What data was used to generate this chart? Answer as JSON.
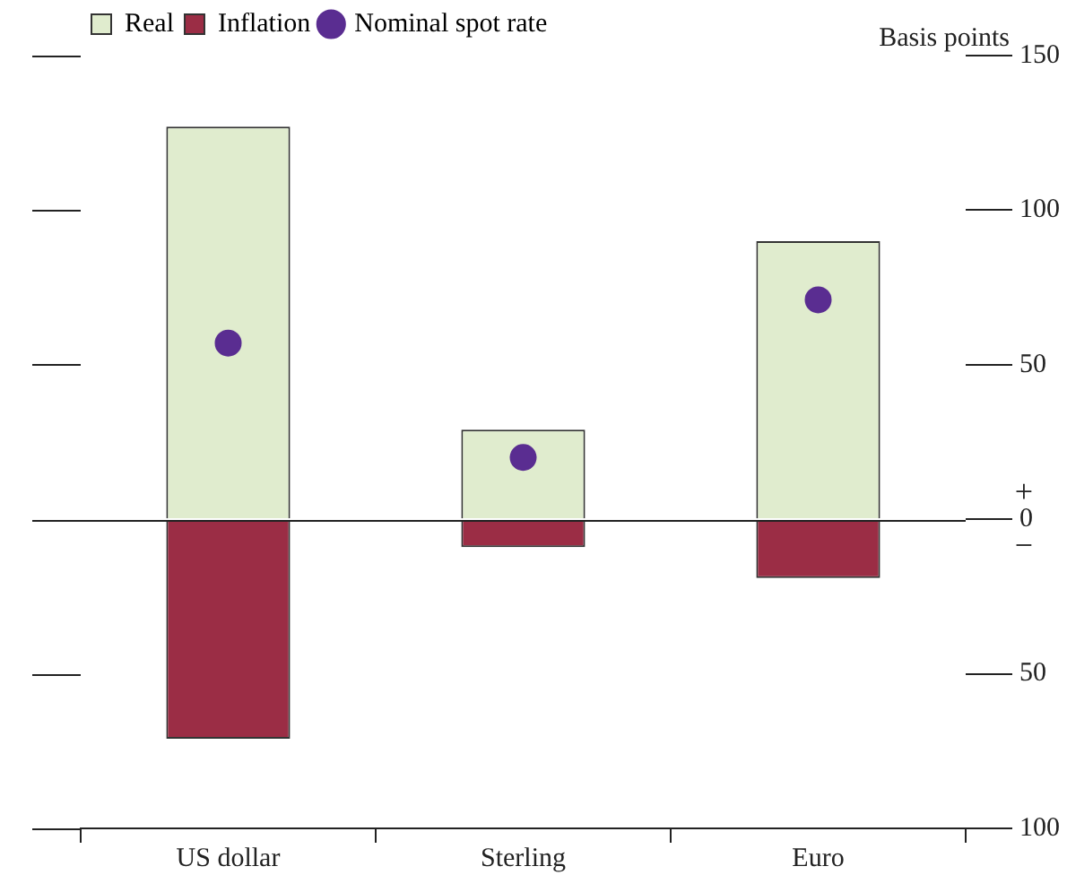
{
  "chart_data": {
    "type": "bar",
    "stacked": true,
    "ylabel": "Basis points",
    "categories": [
      "US dollar",
      "Sterling",
      "Euro"
    ],
    "series": [
      {
        "name": "Real",
        "color": "#e0ecce",
        "values": [
          127,
          29,
          90
        ]
      },
      {
        "name": "Inflation",
        "color": "#9b2d45",
        "values": [
          -71,
          -9,
          -19
        ]
      },
      {
        "name": "Nominal spot rate",
        "type": "scatter",
        "color": "#5a2d91",
        "x": [
          "US dollar",
          "Sterling",
          "Euro"
        ],
        "values": [
          57,
          20,
          71
        ]
      }
    ],
    "ylim": [
      -100,
      150
    ],
    "yticks": [
      {
        "value": -100,
        "label": "100"
      },
      {
        "value": -50,
        "label": "50"
      },
      0,
      50,
      100,
      150
    ],
    "annotations": [
      "+",
      "−"
    ],
    "legend": "top left",
    "grid": "y"
  }
}
